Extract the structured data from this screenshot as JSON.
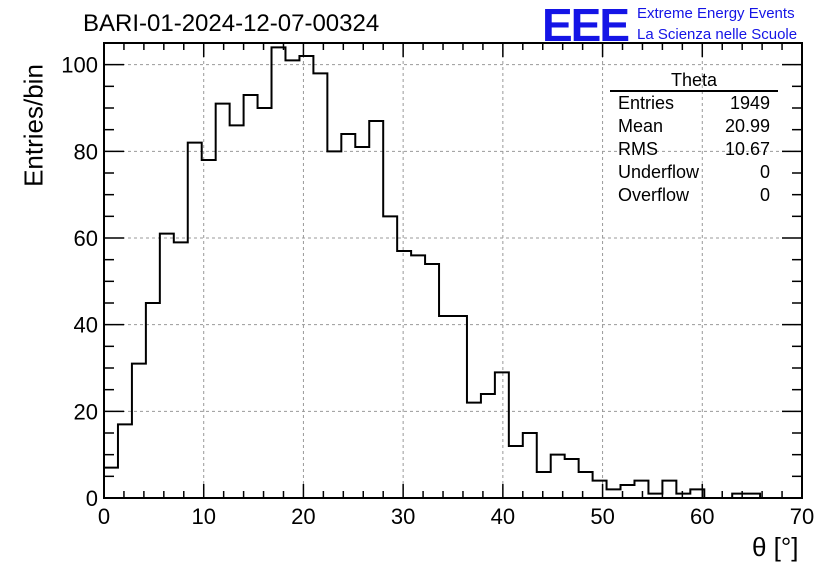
{
  "chart_data": {
    "type": "histogram",
    "title": "BARI-01-2024-12-07-00324",
    "xlabel": "θ [°]",
    "ylabel": "Entries/bin",
    "xlim": [
      0,
      70
    ],
    "ylim": [
      0,
      105
    ],
    "grid": true,
    "bin_width": 1.4,
    "x_ticks": [
      0,
      10,
      20,
      30,
      40,
      50,
      60,
      70
    ],
    "y_ticks": [
      0,
      20,
      40,
      60,
      80,
      100
    ],
    "values": [
      7,
      17,
      31,
      45,
      61,
      59,
      82,
      78,
      91,
      86,
      93,
      90,
      104,
      101,
      102,
      98,
      80,
      84,
      81,
      87,
      65,
      57,
      56,
      54,
      42,
      42,
      22,
      24,
      29,
      12,
      15,
      6,
      10,
      9,
      6,
      4,
      2,
      3,
      4,
      1,
      4,
      1,
      2,
      0,
      0,
      1,
      1,
      0,
      0,
      0
    ],
    "stats_box": {
      "title": "Theta",
      "rows": [
        {
          "label": "Entries",
          "value": "1949"
        },
        {
          "label": "Mean",
          "value": "20.99"
        },
        {
          "label": "RMS",
          "value": "10.67"
        },
        {
          "label": "Underflow",
          "value": "0"
        },
        {
          "label": "Overflow",
          "value": "0"
        }
      ]
    },
    "colors": {
      "line": "#000000",
      "grid": "#999999",
      "logo": "#1414e6"
    }
  },
  "logo": {
    "mark": "EEE",
    "line1": "Extreme Energy Events",
    "line2": "La Scienza nelle Scuole"
  }
}
